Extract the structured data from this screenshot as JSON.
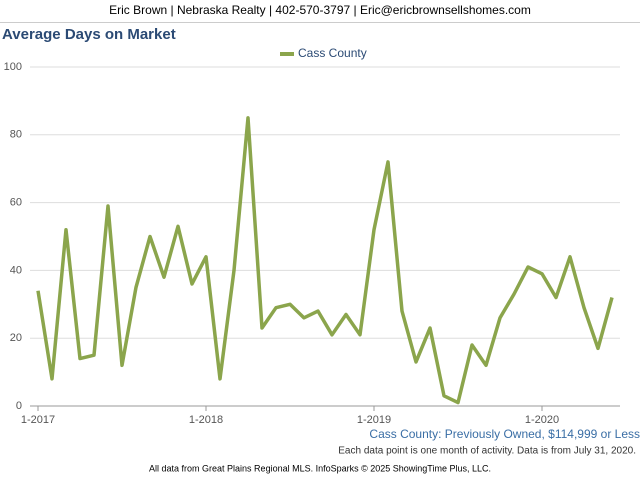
{
  "header": "Eric Brown | Nebraska Realty | 402-570-3797 | Eric@ericbrownsellshomes.com",
  "chart_data": {
    "type": "line",
    "title": "Average Days on Market",
    "subtitle": "Cass County: Previously Owned, $114,999 or Less",
    "note": "Each data point is one month of activity. Data is from July 31, 2020.",
    "categories": [
      "1-2017",
      null,
      null,
      null,
      null,
      null,
      null,
      null,
      null,
      null,
      null,
      null,
      "1-2018",
      null,
      null,
      null,
      null,
      null,
      null,
      null,
      null,
      null,
      null,
      null,
      "1-2019",
      null,
      null,
      null,
      null,
      null,
      null,
      null,
      null,
      null,
      null,
      null,
      "1-2020",
      null,
      null,
      null,
      null,
      null
    ],
    "series": [
      {
        "name": "Cass County",
        "color": "#8ba54c",
        "values": [
          34,
          8,
          52,
          14,
          15,
          59,
          12,
          35,
          50,
          38,
          53,
          36,
          44,
          8,
          40,
          85,
          23,
          29,
          30,
          26,
          28,
          21,
          27,
          21,
          52,
          72,
          28,
          13,
          23,
          3,
          1,
          18,
          12,
          26,
          33,
          41,
          39,
          32,
          44,
          29,
          17,
          32
        ]
      }
    ],
    "ylim": [
      0,
      100
    ],
    "yticks": [
      0,
      20,
      40,
      60,
      80,
      100
    ],
    "grid": true,
    "legend": "top"
  },
  "footer": "All data from Great Plains Regional MLS. InfoSparks © 2025 ShowingTime Plus, LLC."
}
